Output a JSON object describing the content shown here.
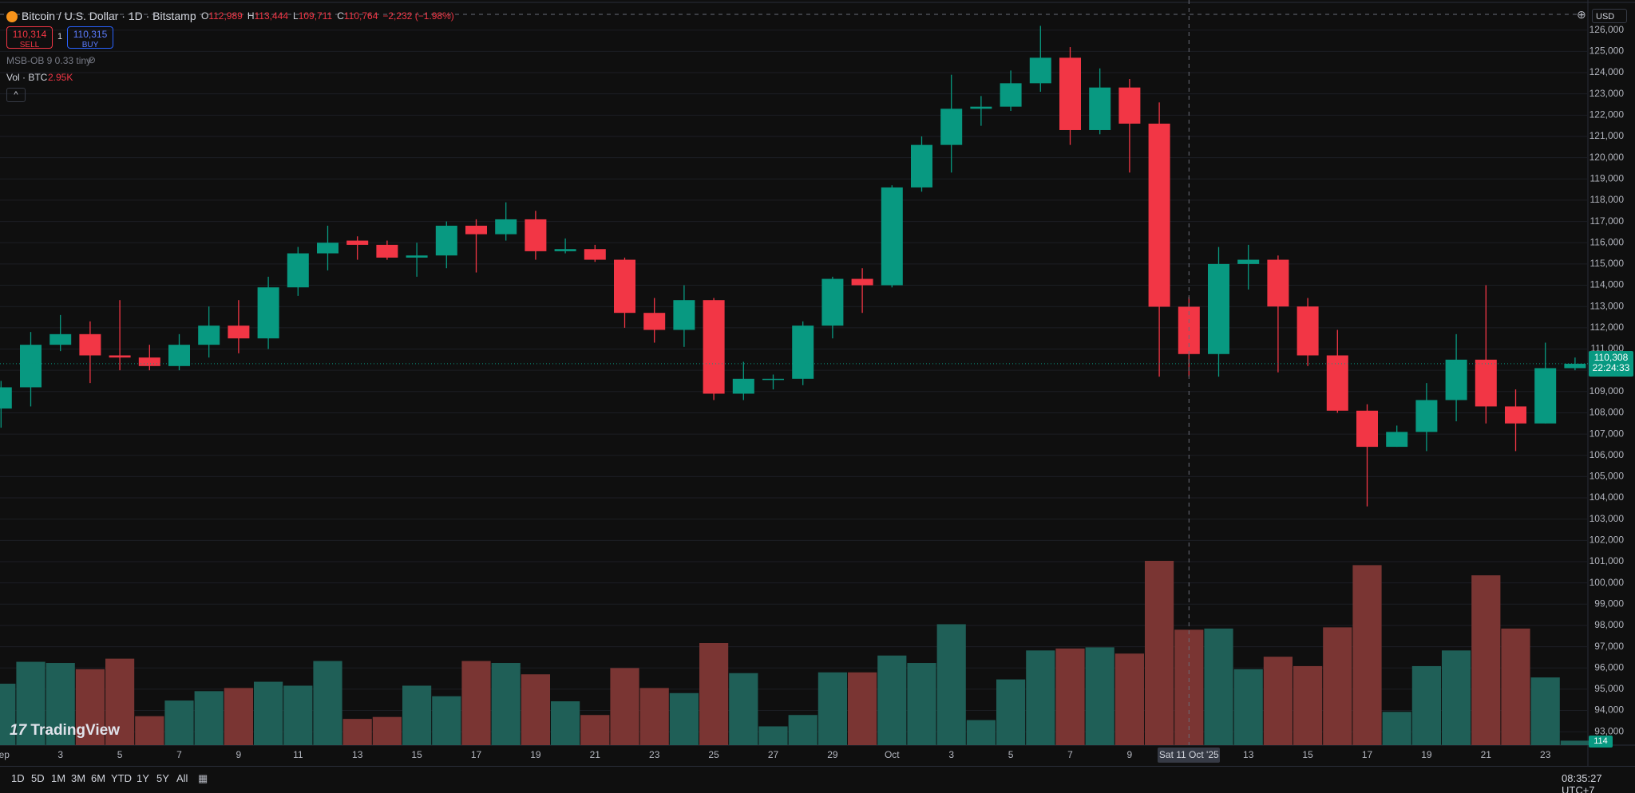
{
  "chart_data": {
    "type": "candlestick",
    "categories": [
      "Sep",
      null,
      "3",
      null,
      "5",
      null,
      "7",
      null,
      "9",
      null,
      "11",
      null,
      "13",
      null,
      "15",
      null,
      "17",
      null,
      "19",
      null,
      "21",
      null,
      "23",
      null,
      "25",
      null,
      "27",
      null,
      "29",
      null,
      "Oct",
      null,
      "3",
      null,
      "5",
      null,
      "7",
      null,
      "9",
      null,
      null,
      null,
      "13",
      null,
      "15",
      null,
      "17",
      null,
      "19",
      null,
      "21",
      null,
      "23",
      null
    ],
    "open": [
      108200,
      109200,
      111200,
      111700,
      110700,
      110600,
      110200,
      111200,
      112100,
      111500,
      113900,
      115500,
      116100,
      115900,
      115300,
      115400,
      116800,
      116400,
      117100,
      115600,
      115700,
      115200,
      112700,
      111900,
      113300,
      108900,
      109600,
      109600,
      112100,
      114300,
      114000,
      118600,
      120600,
      122300,
      122400,
      123500,
      124700,
      121300,
      123300,
      121600,
      112989,
      110764,
      115000,
      115200,
      113000,
      110700,
      108100,
      106400,
      107100,
      108600,
      110500,
      108300,
      107500,
      110100
    ],
    "high": [
      109500,
      111800,
      112600,
      112300,
      113300,
      111200,
      111700,
      113000,
      113300,
      114400,
      115800,
      116800,
      116300,
      116100,
      116000,
      117000,
      117100,
      117900,
      117500,
      116200,
      115900,
      115300,
      113400,
      114000,
      113400,
      110400,
      109800,
      112300,
      114400,
      114800,
      118700,
      121000,
      123900,
      122900,
      124100,
      126200,
      125200,
      124200,
      123700,
      122600,
      113444,
      115800,
      115900,
      115400,
      113400,
      111900,
      108400,
      107400,
      109400,
      111700,
      114000,
      109100,
      111300,
      110600
    ],
    "low": [
      107300,
      108300,
      110900,
      109400,
      110000,
      110000,
      110000,
      110600,
      110800,
      111000,
      113500,
      114700,
      115200,
      115200,
      114400,
      114800,
      114600,
      116100,
      115200,
      115500,
      115100,
      112000,
      111300,
      111100,
      108600,
      108600,
      109100,
      109300,
      111500,
      112700,
      113900,
      118400,
      119300,
      121500,
      122200,
      123100,
      120600,
      121100,
      119300,
      109700,
      109711,
      109700,
      113800,
      109900,
      110200,
      108000,
      103600,
      106400,
      106200,
      107600,
      107500,
      106200,
      107500,
      110000
    ],
    "close": [
      109200,
      111200,
      111700,
      110700,
      110600,
      110200,
      111200,
      112100,
      111500,
      113900,
      115500,
      116000,
      115900,
      115300,
      115400,
      116800,
      116400,
      117100,
      115600,
      115700,
      115200,
      112700,
      111900,
      113300,
      108900,
      109600,
      109600,
      112100,
      114300,
      114000,
      118600,
      120600,
      122300,
      122400,
      123500,
      124700,
      121300,
      123300,
      121600,
      112989,
      110764,
      115000,
      115200,
      113000,
      110700,
      108100,
      106400,
      107100,
      108600,
      110500,
      108300,
      107500,
      110100,
      110308
    ],
    "volume": [
      1570,
      2130,
      2100,
      1940,
      2210,
      740,
      1140,
      1380,
      1460,
      1620,
      1520,
      2150,
      670,
      720,
      1520,
      1250,
      2150,
      2100,
      1810,
      1120,
      770,
      1970,
      1460,
      1330,
      2610,
      1840,
      480,
      770,
      1860,
      1860,
      2290,
      2100,
      3090,
      640,
      1680,
      2420,
      2470,
      2500,
      2340,
      4710,
      2950,
      2980,
      1940,
      2260,
      2020,
      3010,
      4600,
      850,
      2020,
      2420,
      4340,
      2980,
      1730,
      114
    ],
    "up_color": "#089981",
    "down_color": "#f23645",
    "up_volume_color": "#1f5f57",
    "down_volume_color": "#7a3533",
    "ylim": [
      92370,
      126440
    ],
    "yticks": [
      {
        "value": 93000,
        "label": "93,000"
      },
      {
        "value": 94000,
        "label": "94,000"
      },
      {
        "value": 95000,
        "label": "95,000"
      },
      {
        "value": 96000,
        "label": "96,000"
      },
      {
        "value": 97000,
        "label": "97,000"
      },
      {
        "value": 98000,
        "label": "98,000"
      },
      {
        "value": 99000,
        "label": "99,000"
      },
      {
        "value": 100000,
        "label": "100,000"
      },
      {
        "value": 101000,
        "label": "101,000"
      },
      {
        "value": 102000,
        "label": "102,000"
      },
      {
        "value": 103000,
        "label": "103,000"
      },
      {
        "value": 104000,
        "label": "104,000"
      },
      {
        "value": 105000,
        "label": "105,000"
      },
      {
        "value": 106000,
        "label": "106,000"
      },
      {
        "value": 107000,
        "label": "107,000"
      },
      {
        "value": 108000,
        "label": "108,000"
      },
      {
        "value": 109000,
        "label": "109,000"
      },
      {
        "value": 110000,
        "label": "110,000"
      },
      {
        "value": 111000,
        "label": "111,000"
      },
      {
        "value": 112000,
        "label": "112,000"
      },
      {
        "value": 113000,
        "label": "113,000"
      },
      {
        "value": 114000,
        "label": "114,000"
      },
      {
        "value": 115000,
        "label": "115,000"
      },
      {
        "value": 116000,
        "label": "116,000"
      },
      {
        "value": 117000,
        "label": "117,000"
      },
      {
        "value": 118000,
        "label": "118,000"
      },
      {
        "value": 119000,
        "label": "119,000"
      },
      {
        "value": 120000,
        "label": "120,000"
      },
      {
        "value": 121000,
        "label": "121,000"
      },
      {
        "value": 122000,
        "label": "122,000"
      },
      {
        "value": 123000,
        "label": "123,000"
      },
      {
        "value": 124000,
        "label": "124,000"
      },
      {
        "value": 125000,
        "label": "125,000"
      },
      {
        "value": 126000,
        "label": "126,000"
      }
    ],
    "grid": true
  },
  "ui": {
    "symbol": "Bitcoin / U.S. Dollar · 1D · Bitstamp",
    "ohlc": [
      {
        "key": "O",
        "value": "112,989"
      },
      {
        "key": "H",
        "value": "113,444"
      },
      {
        "key": "L",
        "value": "109,711"
      },
      {
        "key": "C",
        "value": "110,764"
      }
    ],
    "change": "−2,232 (−1.98%)",
    "sell_price": "110,314",
    "sell": "SELL",
    "quantity": "1",
    "buy_price": "110,315",
    "buy": "BUY",
    "indicator": "MSB-OB 9 0.33 tiny",
    "volume_title": "Vol · BTC",
    "volume_value": "2.95K",
    "currency": "USD",
    "price_label": "110,308",
    "countdown": "22:24:33",
    "volume_label": "114",
    "logo": "TradingView",
    "crosshair_date": "Sat 11 Oct '25",
    "ranges": [
      "1D",
      "5D",
      "1M",
      "3M",
      "6M",
      "YTD",
      "1Y",
      "5Y",
      "All"
    ],
    "clock": "08:35:27 UTC+7"
  }
}
